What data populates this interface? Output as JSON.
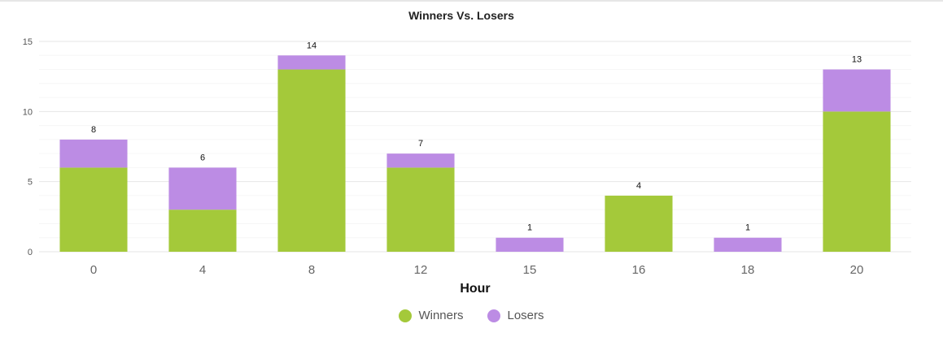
{
  "chart_data": {
    "type": "bar",
    "stacked": true,
    "title": "Winners Vs. Losers",
    "xlabel": "Hour",
    "ylabel": "",
    "categories": [
      "0",
      "4",
      "8",
      "12",
      "15",
      "16",
      "18",
      "20"
    ],
    "series": [
      {
        "name": "Winners",
        "values": [
          6,
          3,
          13,
          6,
          0,
          4,
          0,
          10
        ],
        "color": "#a4c93a"
      },
      {
        "name": "Losers",
        "values": [
          2,
          3,
          1,
          1,
          1,
          0,
          1,
          3
        ],
        "color": "#bc8ce4"
      }
    ],
    "totals": [
      8,
      6,
      14,
      7,
      1,
      4,
      1,
      13
    ],
    "ylim": [
      0,
      15
    ],
    "yticks": [
      0,
      5,
      10,
      15
    ],
    "grid": true,
    "legend_position": "bottom"
  }
}
